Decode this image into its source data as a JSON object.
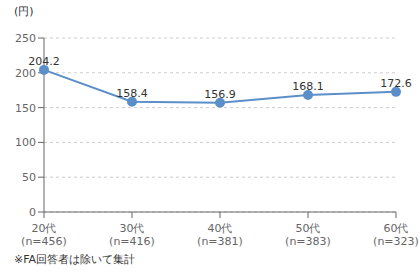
{
  "chart_data": {
    "type": "line",
    "ylabel": "(円)",
    "annotations": [
      "※FA回答者は除いて集計"
    ],
    "categories": [
      "20代\n(n=456)",
      "30代\n(n=416)",
      "40代\n(n=381)",
      "50代\n(n=383)",
      "60代\n(n=323)"
    ],
    "values": [
      204.2,
      158.4,
      156.9,
      168.1,
      172.6
    ],
    "value_labels": [
      "204.2",
      "158.4",
      "156.9",
      "168.1",
      "172.6"
    ],
    "color": "#5b8fc9",
    "marker": "circle",
    "ylim": [
      0,
      250
    ],
    "yticks": [
      0,
      50,
      100,
      150,
      200,
      250
    ],
    "grid": "y",
    "data_labels": true
  }
}
